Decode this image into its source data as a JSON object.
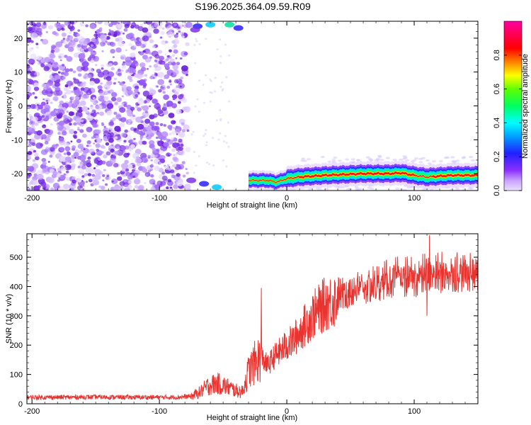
{
  "title": "S196.2025.364.09.59.R09",
  "colors": {
    "snr_line": "#e8332f",
    "noise_purple": "#8a3cf0",
    "background": "#ffffff"
  },
  "chart_data": [
    {
      "type": "heatmap",
      "xlabel": "Height of straight line (km)",
      "ylabel": "Frequency (Hz)",
      "xlim": [
        -204,
        150
      ],
      "ylim": [
        -25,
        25
      ],
      "x_ticks": [
        -200,
        -100,
        0,
        100
      ],
      "y_ticks": [
        20,
        10,
        0,
        -10,
        -20
      ],
      "colorbar": {
        "label": "Normalized spectral amplitude",
        "range": [
          0,
          1
        ],
        "ticks": [
          "0.0",
          "0.2",
          "0.4",
          "0.6",
          "0.8"
        ],
        "colormap": "rainbow (purple-blue-cyan-green-yellow-red-magenta)"
      },
      "features": {
        "noise_region_x": [
          -204,
          -75
        ],
        "signal_band": {
          "x_start": -30,
          "x_end": 150,
          "frequency": [
            [
              -30,
              -22
            ],
            [
              -15,
              -22
            ],
            [
              -8,
              -22.5
            ],
            [
              0,
              -21.5
            ],
            [
              10,
              -21
            ],
            [
              30,
              -20.5
            ],
            [
              60,
              -20
            ],
            [
              80,
              -20
            ],
            [
              90,
              -19.8
            ],
            [
              100,
              -20.5
            ],
            [
              110,
              -21
            ],
            [
              130,
              -20.5
            ],
            [
              150,
              -20.5
            ]
          ]
        }
      }
    },
    {
      "type": "line",
      "xlabel": "Height of straight line (km)",
      "ylabel": "SNR (10 * v/v)",
      "xlim": [
        -204,
        150
      ],
      "ylim": [
        0,
        580
      ],
      "x_ticks": [
        -200,
        -100,
        0,
        100
      ],
      "y_ticks": [
        0,
        100,
        200,
        300,
        400,
        500
      ],
      "series": [
        {
          "x": [
            -204,
            -180,
            -150,
            -120,
            -90,
            -75,
            -68,
            -62,
            -55,
            -48,
            -40,
            -35,
            -30,
            -25,
            -20,
            -15,
            -10,
            -5,
            0,
            5,
            10,
            20,
            30,
            40,
            50,
            60,
            70,
            80,
            90,
            100,
            110,
            120,
            130,
            140,
            150
          ],
          "y": [
            22,
            22,
            23,
            22,
            22,
            25,
            40,
            60,
            70,
            60,
            45,
            40,
            110,
            140,
            160,
            130,
            160,
            180,
            200,
            215,
            245,
            300,
            340,
            360,
            375,
            385,
            395,
            410,
            420,
            415,
            430,
            430,
            435,
            435,
            440
          ]
        }
      ],
      "spikes": [
        {
          "x": -20,
          "y": 395
        },
        {
          "x": 112,
          "y": 575
        },
        {
          "x": 110,
          "y": 300
        }
      ]
    }
  ]
}
